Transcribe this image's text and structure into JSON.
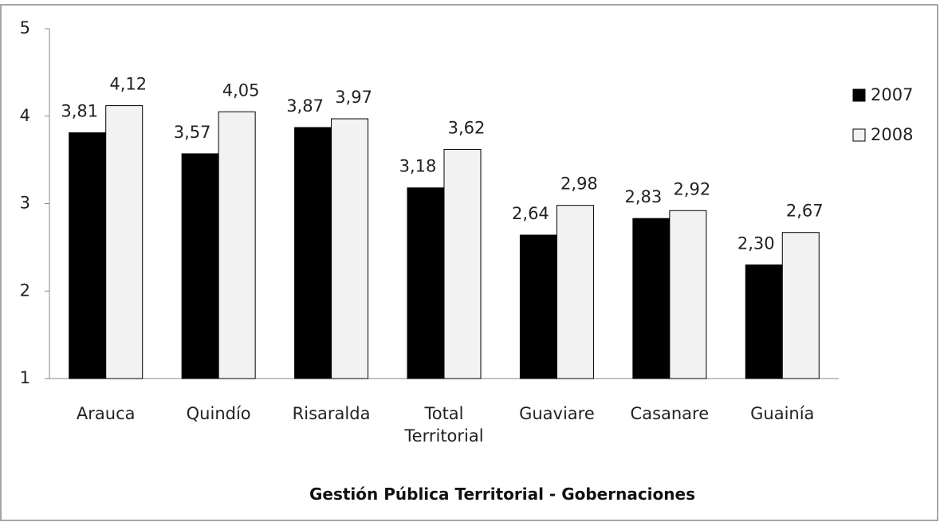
{
  "chart_data": {
    "type": "bar",
    "x_label": "Gestión Pública Territorial - Gobernaciones",
    "categories": [
      "Arauca",
      "Quindío",
      "Risaralda",
      "Total Territorial",
      "Guaviare",
      "Casanare",
      "Guainía"
    ],
    "series": [
      {
        "name": "2007",
        "color": "#000000",
        "values": [
          3.81,
          3.57,
          3.87,
          3.18,
          2.64,
          2.83,
          2.3
        ],
        "value_labels": [
          "3,81",
          "3,57",
          "3,87",
          "3,18",
          "2,64",
          "2,83",
          "2,30"
        ]
      },
      {
        "name": "2008",
        "color": "#f2f2f2",
        "values": [
          4.12,
          4.05,
          3.97,
          3.62,
          2.98,
          2.92,
          2.67
        ],
        "value_labels": [
          "4,12",
          "4,05",
          "3,97",
          "3,62",
          "2,98",
          "2,92",
          "2,67"
        ]
      }
    ],
    "ylim": [
      1,
      5
    ],
    "yticks": [
      1,
      2,
      3,
      4,
      5
    ],
    "grid": false,
    "legend": "right"
  }
}
